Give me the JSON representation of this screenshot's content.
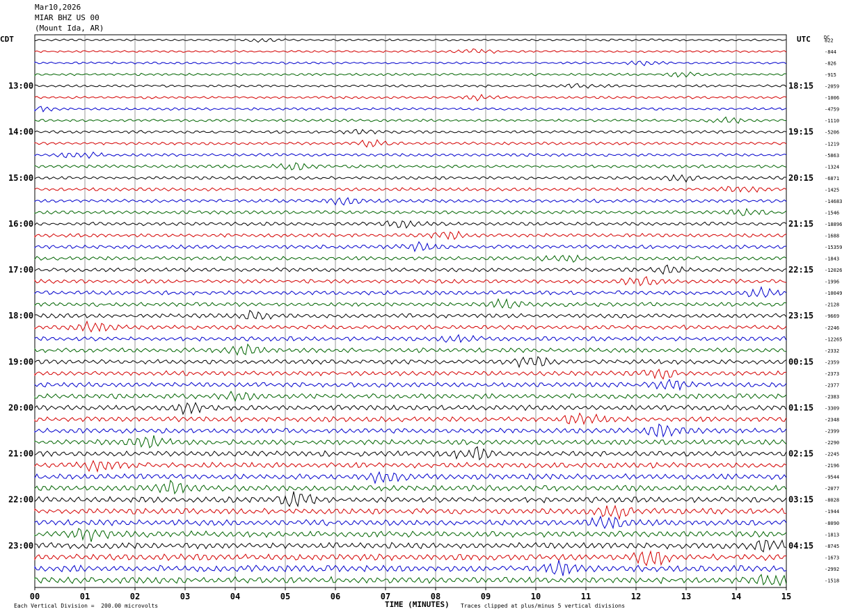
{
  "header": {
    "date": "Mar10,2026",
    "station": "MIAR BHZ US 00",
    "location": "(Mount Ida, AR)"
  },
  "left_label": "CDT",
  "right_label": "UTC",
  "dc_label": "DC",
  "footer": {
    "scale": "Each Vertical Division =  200.00 microvolts",
    "xlabel": "TIME (MINUTES)",
    "clip": "Traces clipped at plus/minus 5 vertical divisions"
  },
  "colors": {
    "trace": [
      "#000000",
      "#d40000",
      "#0000cc",
      "#006400"
    ],
    "grid": "#000000"
  },
  "chart_data": {
    "type": "line",
    "title": "MIAR BHZ US 00",
    "xlabel": "TIME (MINUTES)",
    "ylabel": "",
    "xlim": [
      0,
      15
    ],
    "x_ticks": [
      "00",
      "01",
      "02",
      "03",
      "04",
      "05",
      "06",
      "07",
      "08",
      "09",
      "10",
      "11",
      "12",
      "13",
      "14",
      "15"
    ],
    "traces_per_hour": 4,
    "left_hour_labels": [
      "13:00",
      "14:00",
      "15:00",
      "16:00",
      "17:00",
      "18:00",
      "19:00",
      "20:00",
      "21:00",
      "22:00",
      "23:00"
    ],
    "right_hour_labels": [
      "18:15",
      "19:15",
      "20:15",
      "21:15",
      "22:15",
      "23:15",
      "00:15",
      "01:15",
      "02:15",
      "03:15",
      "04:15"
    ],
    "dc_offsets": [
      "822",
      "-844",
      "-826",
      "-915",
      "-2059",
      "-1006",
      "-4759",
      "-1110",
      "-5206",
      "-1219",
      "-5863",
      "-1324",
      "-6871",
      "-1425",
      "-14683",
      "-1546",
      "-18896",
      "-1688",
      "-15359",
      "-1843",
      "-12026",
      "-1996",
      "-10049",
      "-2128",
      "-9669",
      "-2246",
      "-12265",
      "-2332",
      "-2359",
      "-2373",
      "-2377",
      "-2383",
      "-3309",
      "-2348",
      "-2399",
      "-2290",
      "-2245",
      "-2196",
      "-9544",
      "-2077",
      "-8028",
      "-1944",
      "-8090",
      "-1813",
      "-8745",
      "-1673",
      "-2992",
      "-1518"
    ],
    "trace_count": 48
  }
}
